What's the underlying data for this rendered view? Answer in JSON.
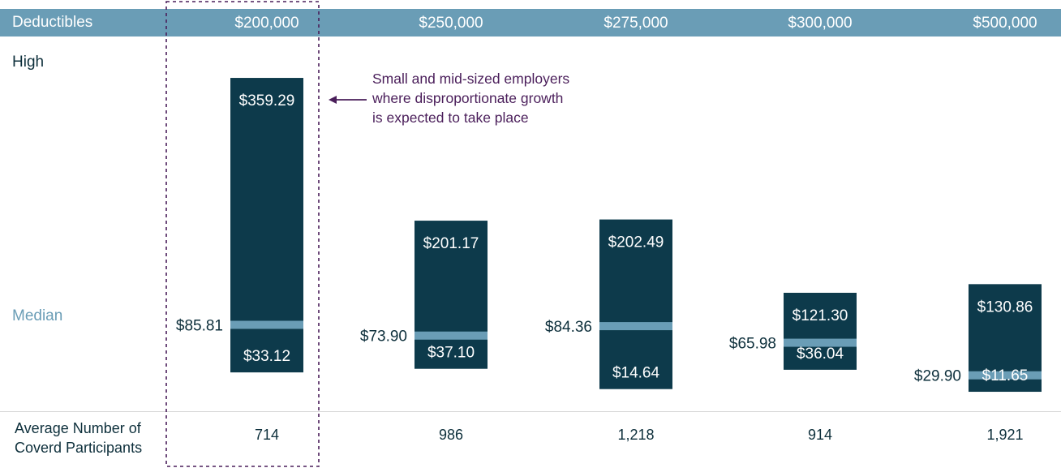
{
  "header": {
    "deductibles_label": "Deductibles"
  },
  "rows": {
    "high_label": "High",
    "median_label": "Median"
  },
  "footer": {
    "label_line1": "Average Number of",
    "label_line2": "Coverd Participants"
  },
  "annotation": {
    "line1": "Small and mid-sized employers",
    "line2": "where disproportionate growth",
    "line3": "is expected to take place"
  },
  "colors": {
    "header_band": "#6a9db6",
    "bar": "#0d3a4b",
    "median_marker": "#6a9db6",
    "median_label": "#6a9db6",
    "annotation": "#4a1e5a",
    "highlight_border": "#4a1e5a"
  },
  "chart_data": {
    "type": "range-bar",
    "categories": [
      "$200,000",
      "$250,000",
      "$275,000",
      "$300,000",
      "$500,000"
    ],
    "high": [
      359.29,
      201.17,
      202.49,
      121.3,
      130.86
    ],
    "median": [
      85.81,
      73.9,
      84.36,
      65.98,
      29.9
    ],
    "low": [
      33.12,
      37.1,
      14.64,
      36.04,
      11.65
    ],
    "high_labels": [
      "$359.29",
      "$201.17",
      "$202.49",
      "$121.30",
      "$130.86"
    ],
    "median_labels": [
      "$85.81",
      "$73.90",
      "$84.36",
      "$65.98",
      "$29.90"
    ],
    "low_labels": [
      "$33.12",
      "$37.10",
      "$14.64",
      "$36.04",
      "$11.65"
    ],
    "participants": [
      "714",
      "986",
      "1,218",
      "914",
      "1,921"
    ],
    "highlighted_category": "$200,000"
  }
}
